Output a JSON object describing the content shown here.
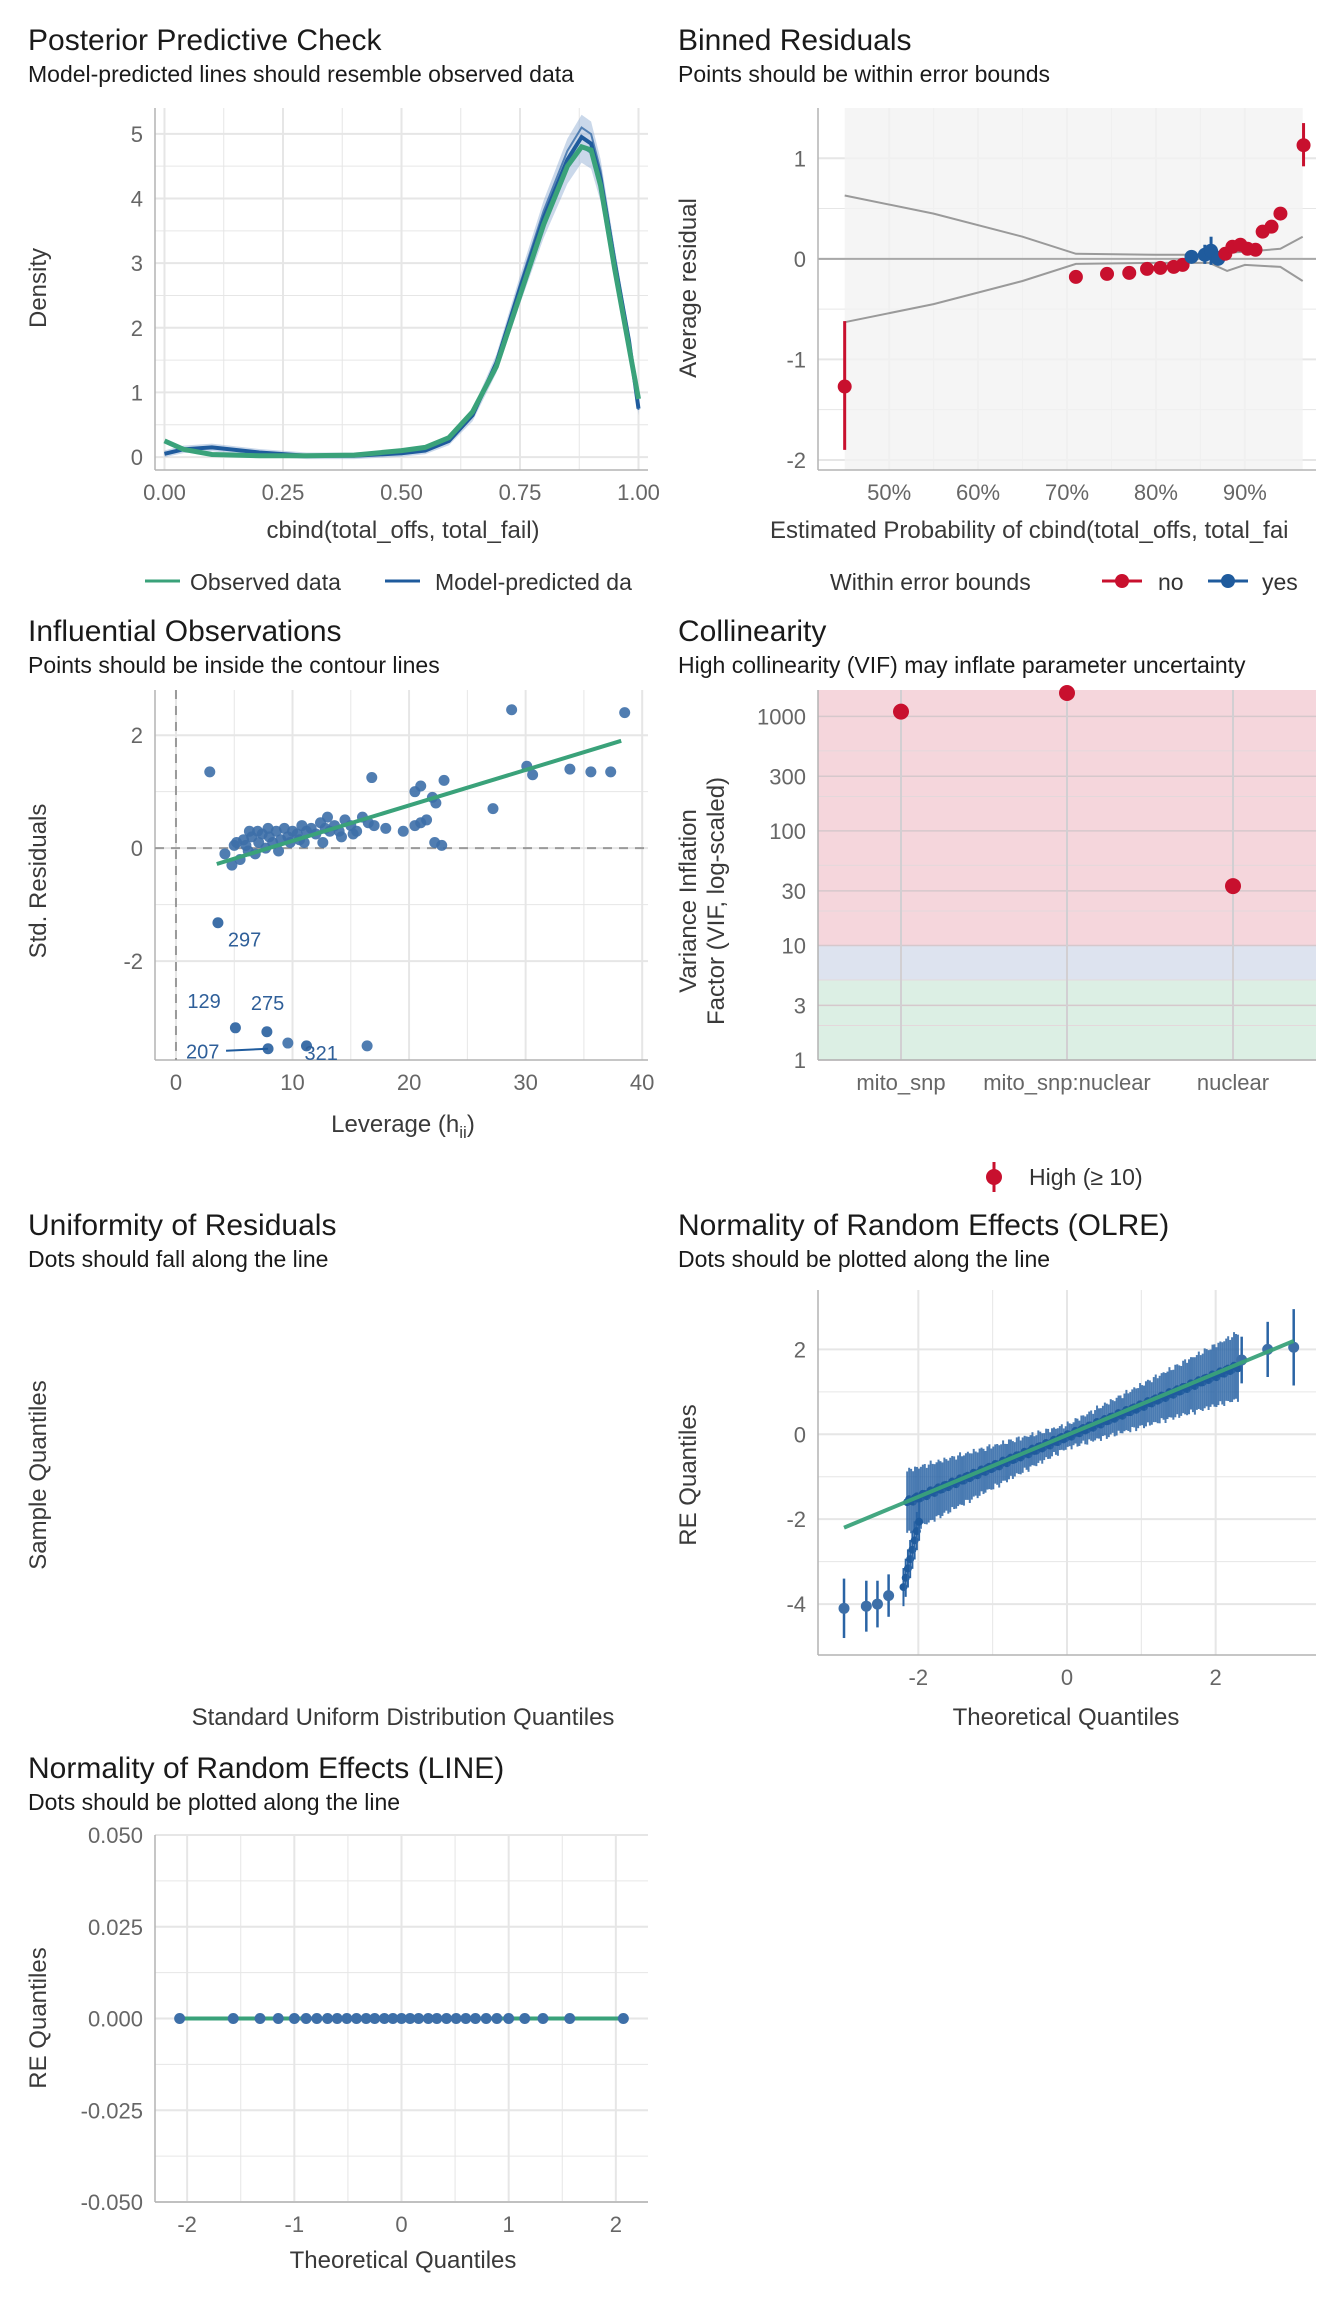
{
  "colors": {
    "green": "#3aa27a",
    "blue": "#1f5b9d",
    "blue_light": "#8aa8d0",
    "red": "#c8102e",
    "grid": "#e6e6e6",
    "axis": "#b3b3b3",
    "ref_line": "#9a9a9a",
    "band_grey": "#f2f2f2",
    "zone_high": "#f5d6dc",
    "zone_moderate": "#dde3ef",
    "zone_low": "#dcefe4"
  },
  "chart_data": [
    {
      "id": "ppc",
      "type": "line",
      "title": "Posterior Predictive Check",
      "subtitle": "Model-predicted lines should resemble observed data",
      "xlabel": "cbind(total_offs, total_fail)",
      "ylabel": "Density",
      "xlim": [
        -0.02,
        1.02
      ],
      "ylim": [
        -0.2,
        5.4
      ],
      "xticks": [
        0.0,
        0.25,
        0.5,
        0.75,
        1.0
      ],
      "xtick_labels": [
        "0.00",
        "0.25",
        "0.50",
        "0.75",
        "1.00"
      ],
      "yticks": [
        0,
        1,
        2,
        3,
        4,
        5
      ],
      "ytick_labels": [
        "0",
        "1",
        "2",
        "3",
        "4",
        "5"
      ],
      "legend": {
        "position": "bottom",
        "items": [
          "Observed data",
          "Model-predicted da"
        ]
      },
      "series": [
        {
          "name": "Observed data",
          "x": [
            0.0,
            0.04,
            0.1,
            0.2,
            0.3,
            0.4,
            0.5,
            0.55,
            0.6,
            0.65,
            0.7,
            0.75,
            0.8,
            0.85,
            0.88,
            0.9,
            0.92,
            0.95,
            0.98,
            1.0
          ],
          "y": [
            0.25,
            0.12,
            0.04,
            0.02,
            0.02,
            0.03,
            0.1,
            0.15,
            0.3,
            0.7,
            1.4,
            2.5,
            3.6,
            4.5,
            4.8,
            4.75,
            4.2,
            2.9,
            1.7,
            0.9
          ]
        },
        {
          "name": "Model-predicted da",
          "x": [
            0.0,
            0.04,
            0.1,
            0.2,
            0.3,
            0.4,
            0.5,
            0.55,
            0.6,
            0.65,
            0.7,
            0.75,
            0.8,
            0.85,
            0.88,
            0.9,
            0.92,
            0.95,
            0.98,
            1.0
          ],
          "y": [
            0.05,
            0.12,
            0.15,
            0.07,
            0.02,
            0.02,
            0.06,
            0.1,
            0.25,
            0.65,
            1.45,
            2.6,
            3.7,
            4.6,
            4.95,
            4.85,
            4.3,
            3.0,
            1.8,
            0.75
          ]
        }
      ]
    },
    {
      "id": "binned",
      "type": "scatter",
      "title": "Binned Residuals",
      "subtitle": "Points should be within error bounds",
      "xlabel": "Estimated Probability of cbind(total_offs, total_fai",
      "ylabel": "Average residual",
      "xlim": [
        0.42,
        0.98
      ],
      "ylim": [
        -2.1,
        1.5
      ],
      "xticks": [
        0.5,
        0.6,
        0.7,
        0.8,
        0.9
      ],
      "xtick_labels": [
        "50%",
        "60%",
        "70%",
        "80%",
        "90%"
      ],
      "yticks": [
        -2,
        -1,
        0,
        1
      ],
      "ytick_labels": [
        "-2",
        "-1",
        "0",
        "1"
      ],
      "legend": {
        "position": "bottom",
        "title": "Within error bounds",
        "items": [
          "no",
          "yes"
        ]
      },
      "bound_x": [
        0.45,
        0.55,
        0.65,
        0.71,
        0.8,
        0.86,
        0.88,
        0.9,
        0.94,
        0.965
      ],
      "bound_upper": [
        0.63,
        0.45,
        0.22,
        0.05,
        0.04,
        0.04,
        0.06,
        0.07,
        0.1,
        0.22
      ],
      "bound_lower": [
        -0.63,
        -0.45,
        -0.22,
        -0.05,
        -0.04,
        -0.04,
        -0.12,
        -0.06,
        -0.08,
        -0.22
      ],
      "points": [
        {
          "x": 0.45,
          "y": -1.27,
          "lo": -1.9,
          "hi": -0.62,
          "within": "no"
        },
        {
          "x": 0.71,
          "y": -0.18,
          "lo": -0.18,
          "hi": -0.18,
          "within": "no"
        },
        {
          "x": 0.745,
          "y": -0.15,
          "lo": -0.15,
          "hi": -0.15,
          "within": "no"
        },
        {
          "x": 0.77,
          "y": -0.14,
          "lo": -0.14,
          "hi": -0.14,
          "within": "no"
        },
        {
          "x": 0.79,
          "y": -0.1,
          "lo": -0.1,
          "hi": -0.1,
          "within": "no"
        },
        {
          "x": 0.805,
          "y": -0.09,
          "lo": -0.09,
          "hi": -0.09,
          "within": "no"
        },
        {
          "x": 0.82,
          "y": -0.08,
          "lo": -0.08,
          "hi": -0.08,
          "within": "no"
        },
        {
          "x": 0.83,
          "y": -0.06,
          "lo": -0.06,
          "hi": -0.06,
          "within": "no"
        },
        {
          "x": 0.84,
          "y": 0.02,
          "lo": 0.02,
          "hi": 0.02,
          "within": "yes"
        },
        {
          "x": 0.855,
          "y": 0.04,
          "lo": -0.05,
          "hi": 0.14,
          "within": "yes"
        },
        {
          "x": 0.862,
          "y": 0.08,
          "lo": -0.06,
          "hi": 0.22,
          "within": "yes"
        },
        {
          "x": 0.87,
          "y": 0.0,
          "lo": -0.06,
          "hi": 0.08,
          "within": "yes"
        },
        {
          "x": 0.878,
          "y": 0.05,
          "lo": 0.05,
          "hi": 0.05,
          "within": "no"
        },
        {
          "x": 0.886,
          "y": 0.12,
          "lo": 0.12,
          "hi": 0.12,
          "within": "no"
        },
        {
          "x": 0.895,
          "y": 0.14,
          "lo": 0.14,
          "hi": 0.14,
          "within": "no"
        },
        {
          "x": 0.903,
          "y": 0.1,
          "lo": 0.1,
          "hi": 0.1,
          "within": "no"
        },
        {
          "x": 0.912,
          "y": 0.09,
          "lo": 0.09,
          "hi": 0.09,
          "within": "no"
        },
        {
          "x": 0.92,
          "y": 0.27,
          "lo": 0.27,
          "hi": 0.27,
          "within": "no"
        },
        {
          "x": 0.93,
          "y": 0.32,
          "lo": 0.32,
          "hi": 0.32,
          "within": "no"
        },
        {
          "x": 0.94,
          "y": 0.45,
          "lo": 0.45,
          "hi": 0.45,
          "within": "no"
        },
        {
          "x": 0.966,
          "y": 1.13,
          "lo": 0.92,
          "hi": 1.35,
          "within": "no"
        }
      ]
    },
    {
      "id": "influential",
      "type": "scatter",
      "title": "Influential Observations",
      "subtitle": "Points should be inside the contour lines",
      "xlabel": "Leverage (h",
      "xlabel_sub": "ii",
      "xlabel_end": ")",
      "ylabel": "Std. Residuals",
      "xlim": [
        -1.8,
        40.5
      ],
      "ylim": [
        -3.75,
        2.8
      ],
      "xticks": [
        0,
        10,
        20,
        30,
        40
      ],
      "xtick_labels": [
        "0",
        "10",
        "20",
        "30",
        "40"
      ],
      "yticks": [
        -2,
        0,
        2
      ],
      "ytick_labels": [
        "-2",
        "0",
        "2"
      ],
      "fit_line": {
        "x": [
          3.5,
          38.2
        ],
        "y": [
          -0.28,
          1.9
        ]
      },
      "cluster": [
        [
          4.2,
          -0.1
        ],
        [
          4.8,
          -0.3
        ],
        [
          5.2,
          0.1
        ],
        [
          5.5,
          -0.2
        ],
        [
          5.8,
          0.15
        ],
        [
          6.2,
          -0.05
        ],
        [
          6.5,
          0.2
        ],
        [
          6.8,
          -0.1
        ],
        [
          7.1,
          0.1
        ],
        [
          7.4,
          0.25
        ],
        [
          7.7,
          0.0
        ],
        [
          8.0,
          0.2
        ],
        [
          8.3,
          0.1
        ],
        [
          8.6,
          0.3
        ],
        [
          9.0,
          0.15
        ],
        [
          9.3,
          0.35
        ],
        [
          9.6,
          0.2
        ],
        [
          10.0,
          0.3
        ],
        [
          10.4,
          0.25
        ],
        [
          10.8,
          0.4
        ],
        [
          11.2,
          0.3
        ],
        [
          11.6,
          0.35
        ],
        [
          12.0,
          0.25
        ],
        [
          12.4,
          0.45
        ],
        [
          12.8,
          0.35
        ],
        [
          13.2,
          0.3
        ],
        [
          13.6,
          0.4
        ],
        [
          14.0,
          0.3
        ],
        [
          14.5,
          0.5
        ],
        [
          15.0,
          0.4
        ],
        [
          15.5,
          0.3
        ],
        [
          16.0,
          0.55
        ],
        [
          16.5,
          0.45
        ],
        [
          17.0,
          0.4
        ],
        [
          18.0,
          0.35
        ],
        [
          5.0,
          0.05
        ],
        [
          6.0,
          0.05
        ],
        [
          7.0,
          0.3
        ],
        [
          8.8,
          -0.05
        ],
        [
          9.8,
          0.1
        ],
        [
          11.0,
          0.1
        ],
        [
          12.6,
          0.1
        ],
        [
          6.3,
          0.3
        ],
        [
          7.9,
          0.35
        ],
        [
          10.6,
          0.15
        ],
        [
          13.0,
          0.55
        ],
        [
          14.2,
          0.2
        ],
        [
          15.2,
          0.25
        ]
      ],
      "outliers": [
        [
          2.9,
          1.35
        ],
        [
          16.8,
          1.25
        ],
        [
          20.5,
          1.0
        ],
        [
          21.0,
          1.1
        ],
        [
          20.5,
          0.4
        ],
        [
          21.5,
          0.5
        ],
        [
          22.0,
          0.9
        ],
        [
          22.3,
          0.8
        ],
        [
          22.2,
          0.1
        ],
        [
          22.8,
          0.05
        ],
        [
          23.0,
          1.2
        ],
        [
          27.2,
          0.7
        ],
        [
          28.8,
          2.45
        ],
        [
          30.1,
          1.45
        ],
        [
          30.6,
          1.3
        ],
        [
          33.8,
          1.4
        ],
        [
          35.6,
          1.35
        ],
        [
          37.3,
          1.35
        ],
        [
          38.5,
          2.4
        ],
        [
          21.0,
          0.45
        ],
        [
          19.5,
          0.3
        ]
      ],
      "labeled_points": [
        {
          "label": "297",
          "x": 3.6,
          "y": -1.32
        },
        {
          "label": "129",
          "x": 5.1,
          "y": -3.18
        },
        {
          "label": "275",
          "x": 7.8,
          "y": -3.25
        },
        {
          "label": "207",
          "x": 7.9,
          "y": -3.55
        },
        {
          "label": "321",
          "x": 11.2,
          "y": -3.5
        }
      ],
      "other_low_points": [
        [
          9.6,
          -3.45
        ],
        [
          16.4,
          -3.5
        ]
      ]
    },
    {
      "id": "collinearity",
      "type": "scatter",
      "title": "Collinearity",
      "subtitle": "High collinearity (VIF) may inflate parameter uncertainty",
      "ylabel_line1": "Variance Inflation",
      "ylabel_line2": "Factor (VIF, log-scaled)",
      "categories": [
        "mito_snp",
        "mito_snp:nuclear",
        "nuclear"
      ],
      "values": [
        1100,
        1600,
        33
      ],
      "ylim": [
        1,
        1700
      ],
      "yticks": [
        1,
        3,
        10,
        30,
        100,
        300,
        1000
      ],
      "ytick_labels": [
        "1",
        "3",
        "10",
        "30",
        "100",
        "300",
        "1000"
      ],
      "zones": {
        "low": [
          1,
          5
        ],
        "moderate": [
          5,
          10
        ],
        "high": [
          10,
          1700
        ]
      },
      "legend": {
        "position": "bottom",
        "items": [
          "High (≥ 10)"
        ]
      }
    },
    {
      "id": "uniformity",
      "type": "scatter",
      "title": "Uniformity of Residuals",
      "subtitle": "Dots should fall along the line",
      "xlabel": "Standard Uniform Distribution Quantiles",
      "ylabel": "Sample Quantiles",
      "points": []
    },
    {
      "id": "olre",
      "type": "scatter",
      "title": "Normality of Random Effects (OLRE)",
      "subtitle": "Dots should be plotted along the line",
      "xlabel": "Theoretical Quantiles",
      "ylabel": "RE Quantiles",
      "xlim": [
        -3.35,
        3.35
      ],
      "ylim": [
        -5.2,
        3.4
      ],
      "xticks": [
        -2,
        0,
        2
      ],
      "xtick_labels": [
        "-2",
        "0",
        "2"
      ],
      "yticks": [
        -4,
        -2,
        0,
        2
      ],
      "ytick_labels": [
        "-4",
        "-2",
        "0",
        "2"
      ],
      "fit_line": {
        "x": [
          -3.0,
          3.05
        ],
        "y": [
          -2.2,
          2.2
        ]
      },
      "tail_points": [
        {
          "x": -3.0,
          "y": -4.1,
          "err": 0.7
        },
        {
          "x": -2.7,
          "y": -4.05,
          "err": 0.6
        },
        {
          "x": -2.55,
          "y": -4.0,
          "err": 0.55
        },
        {
          "x": -2.4,
          "y": -3.8,
          "err": 0.5
        },
        {
          "x": 2.35,
          "y": 1.75,
          "err": 0.55
        },
        {
          "x": 2.7,
          "y": 2.0,
          "err": 0.65
        },
        {
          "x": 3.05,
          "y": 2.05,
          "err": 0.9
        }
      ]
    },
    {
      "id": "line",
      "type": "scatter",
      "title": "Normality of Random Effects (LINE)",
      "subtitle": "Dots should be plotted along the line",
      "xlabel": "Theoretical Quantiles",
      "ylabel": "RE Quantiles",
      "xlim": [
        -2.3,
        2.3
      ],
      "ylim": [
        -0.05,
        0.05
      ],
      "xticks": [
        -2,
        -1,
        0,
        1,
        2
      ],
      "xtick_labels": [
        "-2",
        "-1",
        "0",
        "1",
        "2"
      ],
      "yticks": [
        -0.05,
        -0.025,
        0.0,
        0.025,
        0.05
      ],
      "ytick_labels": [
        "-0.050",
        "-0.025",
        "0.000",
        "0.025",
        "0.050"
      ],
      "x": [
        -2.07,
        -1.57,
        -1.32,
        -1.15,
        -1.0,
        -0.89,
        -0.79,
        -0.69,
        -0.6,
        -0.51,
        -0.42,
        -0.33,
        -0.25,
        -0.16,
        -0.08,
        0.0,
        0.08,
        0.16,
        0.25,
        0.33,
        0.42,
        0.51,
        0.6,
        0.69,
        0.79,
        0.89,
        1.0,
        1.15,
        1.32,
        1.57,
        2.07
      ],
      "y": [
        0,
        0,
        0,
        0,
        0,
        0,
        0,
        0,
        0,
        0,
        0,
        0,
        0,
        0,
        0,
        0,
        0,
        0,
        0,
        0,
        0,
        0,
        0,
        0,
        0,
        0,
        0,
        0,
        0,
        0,
        0
      ]
    }
  ]
}
